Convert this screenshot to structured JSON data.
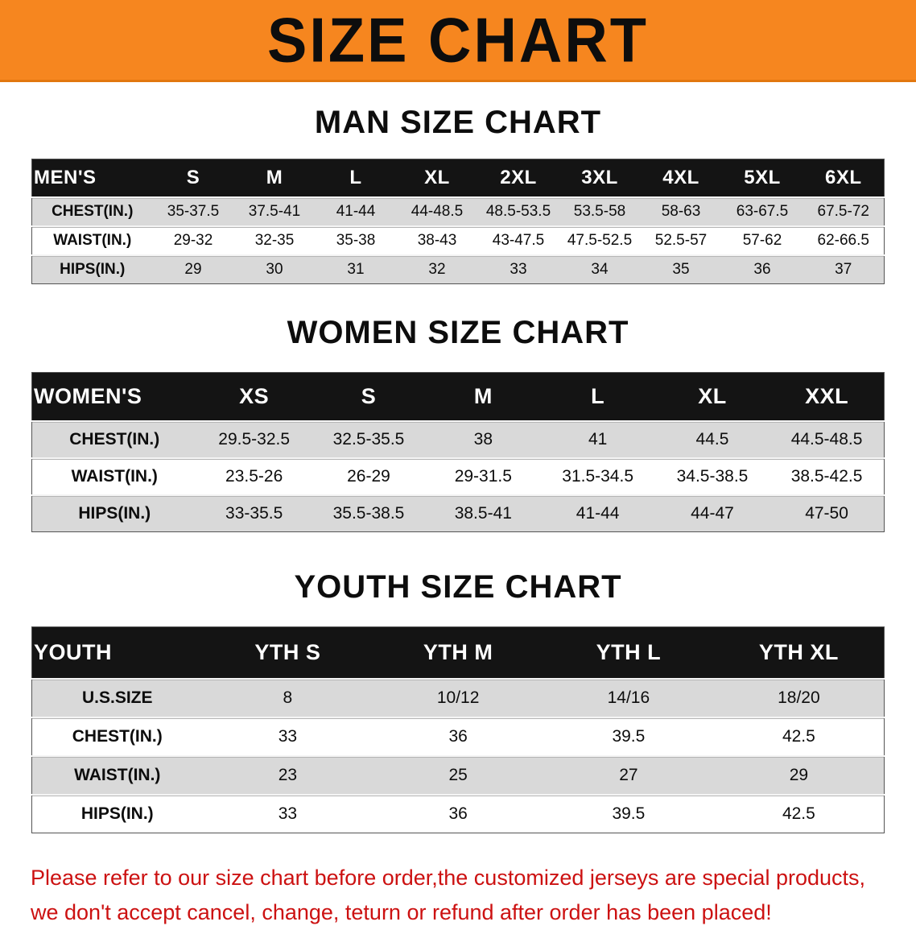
{
  "banner": {
    "title": "SIZE CHART",
    "bg_color": "#F6861F",
    "text_color": "#0D0D0D"
  },
  "sections": [
    {
      "heading": "MAN SIZE CHART",
      "table": {
        "header": [
          "MEN'S",
          "S",
          "M",
          "L",
          "XL",
          "2XL",
          "3XL",
          "4XL",
          "5XL",
          "6XL"
        ],
        "rows": [
          {
            "label": "CHEST(IN.)",
            "values": [
              "35-37.5",
              "37.5-41",
              "41-44",
              "44-48.5",
              "48.5-53.5",
              "53.5-58",
              "58-63",
              "63-67.5",
              "67.5-72"
            ]
          },
          {
            "label": "WAIST(IN.)",
            "values": [
              "29-32",
              "32-35",
              "35-38",
              "38-43",
              "43-47.5",
              "47.5-52.5",
              "52.5-57",
              "57-62",
              "62-66.5"
            ]
          },
          {
            "label": "HIPS(IN.)",
            "values": [
              "29",
              "30",
              "31",
              "32",
              "33",
              "34",
              "35",
              "36",
              "37"
            ]
          }
        ]
      }
    },
    {
      "heading": "WOMEN SIZE CHART",
      "table": {
        "header": [
          "WOMEN'S",
          "XS",
          "S",
          "M",
          "L",
          "XL",
          "XXL"
        ],
        "rows": [
          {
            "label": "CHEST(IN.)",
            "values": [
              "29.5-32.5",
              "32.5-35.5",
              "38",
              "41",
              "44.5",
              "44.5-48.5"
            ]
          },
          {
            "label": "WAIST(IN.)",
            "values": [
              "23.5-26",
              "26-29",
              "29-31.5",
              "31.5-34.5",
              "34.5-38.5",
              "38.5-42.5"
            ]
          },
          {
            "label": "HIPS(IN.)",
            "values": [
              "33-35.5",
              "35.5-38.5",
              "38.5-41",
              "41-44",
              "44-47",
              "47-50"
            ]
          }
        ]
      }
    },
    {
      "heading": "YOUTH SIZE CHART",
      "table": {
        "header": [
          "YOUTH",
          "YTH S",
          "YTH M",
          "YTH L",
          "YTH XL"
        ],
        "rows": [
          {
            "label": "U.S.SIZE",
            "values": [
              "8",
              "10/12",
              "14/16",
              "18/20"
            ]
          },
          {
            "label": "CHEST(IN.)",
            "values": [
              "33",
              "36",
              "39.5",
              "42.5"
            ]
          },
          {
            "label": "WAIST(IN.)",
            "values": [
              "23",
              "25",
              "27",
              "29"
            ]
          },
          {
            "label": "HIPS(IN.)",
            "values": [
              "33",
              "36",
              "39.5",
              "42.5"
            ]
          }
        ]
      }
    }
  ],
  "footer": {
    "lines": [
      "Please refer to our size chart before order,the customized jerseys are special products,",
      "we don't accept cancel, change, teturn or refund after order has been placed!"
    ],
    "text_color": "#CC1111"
  },
  "colors": {
    "table_header_bg": "#141414",
    "table_header_text": "#FFFFFF",
    "row_shaded": "#D9D9D9",
    "row_plain": "#FFFFFF"
  }
}
